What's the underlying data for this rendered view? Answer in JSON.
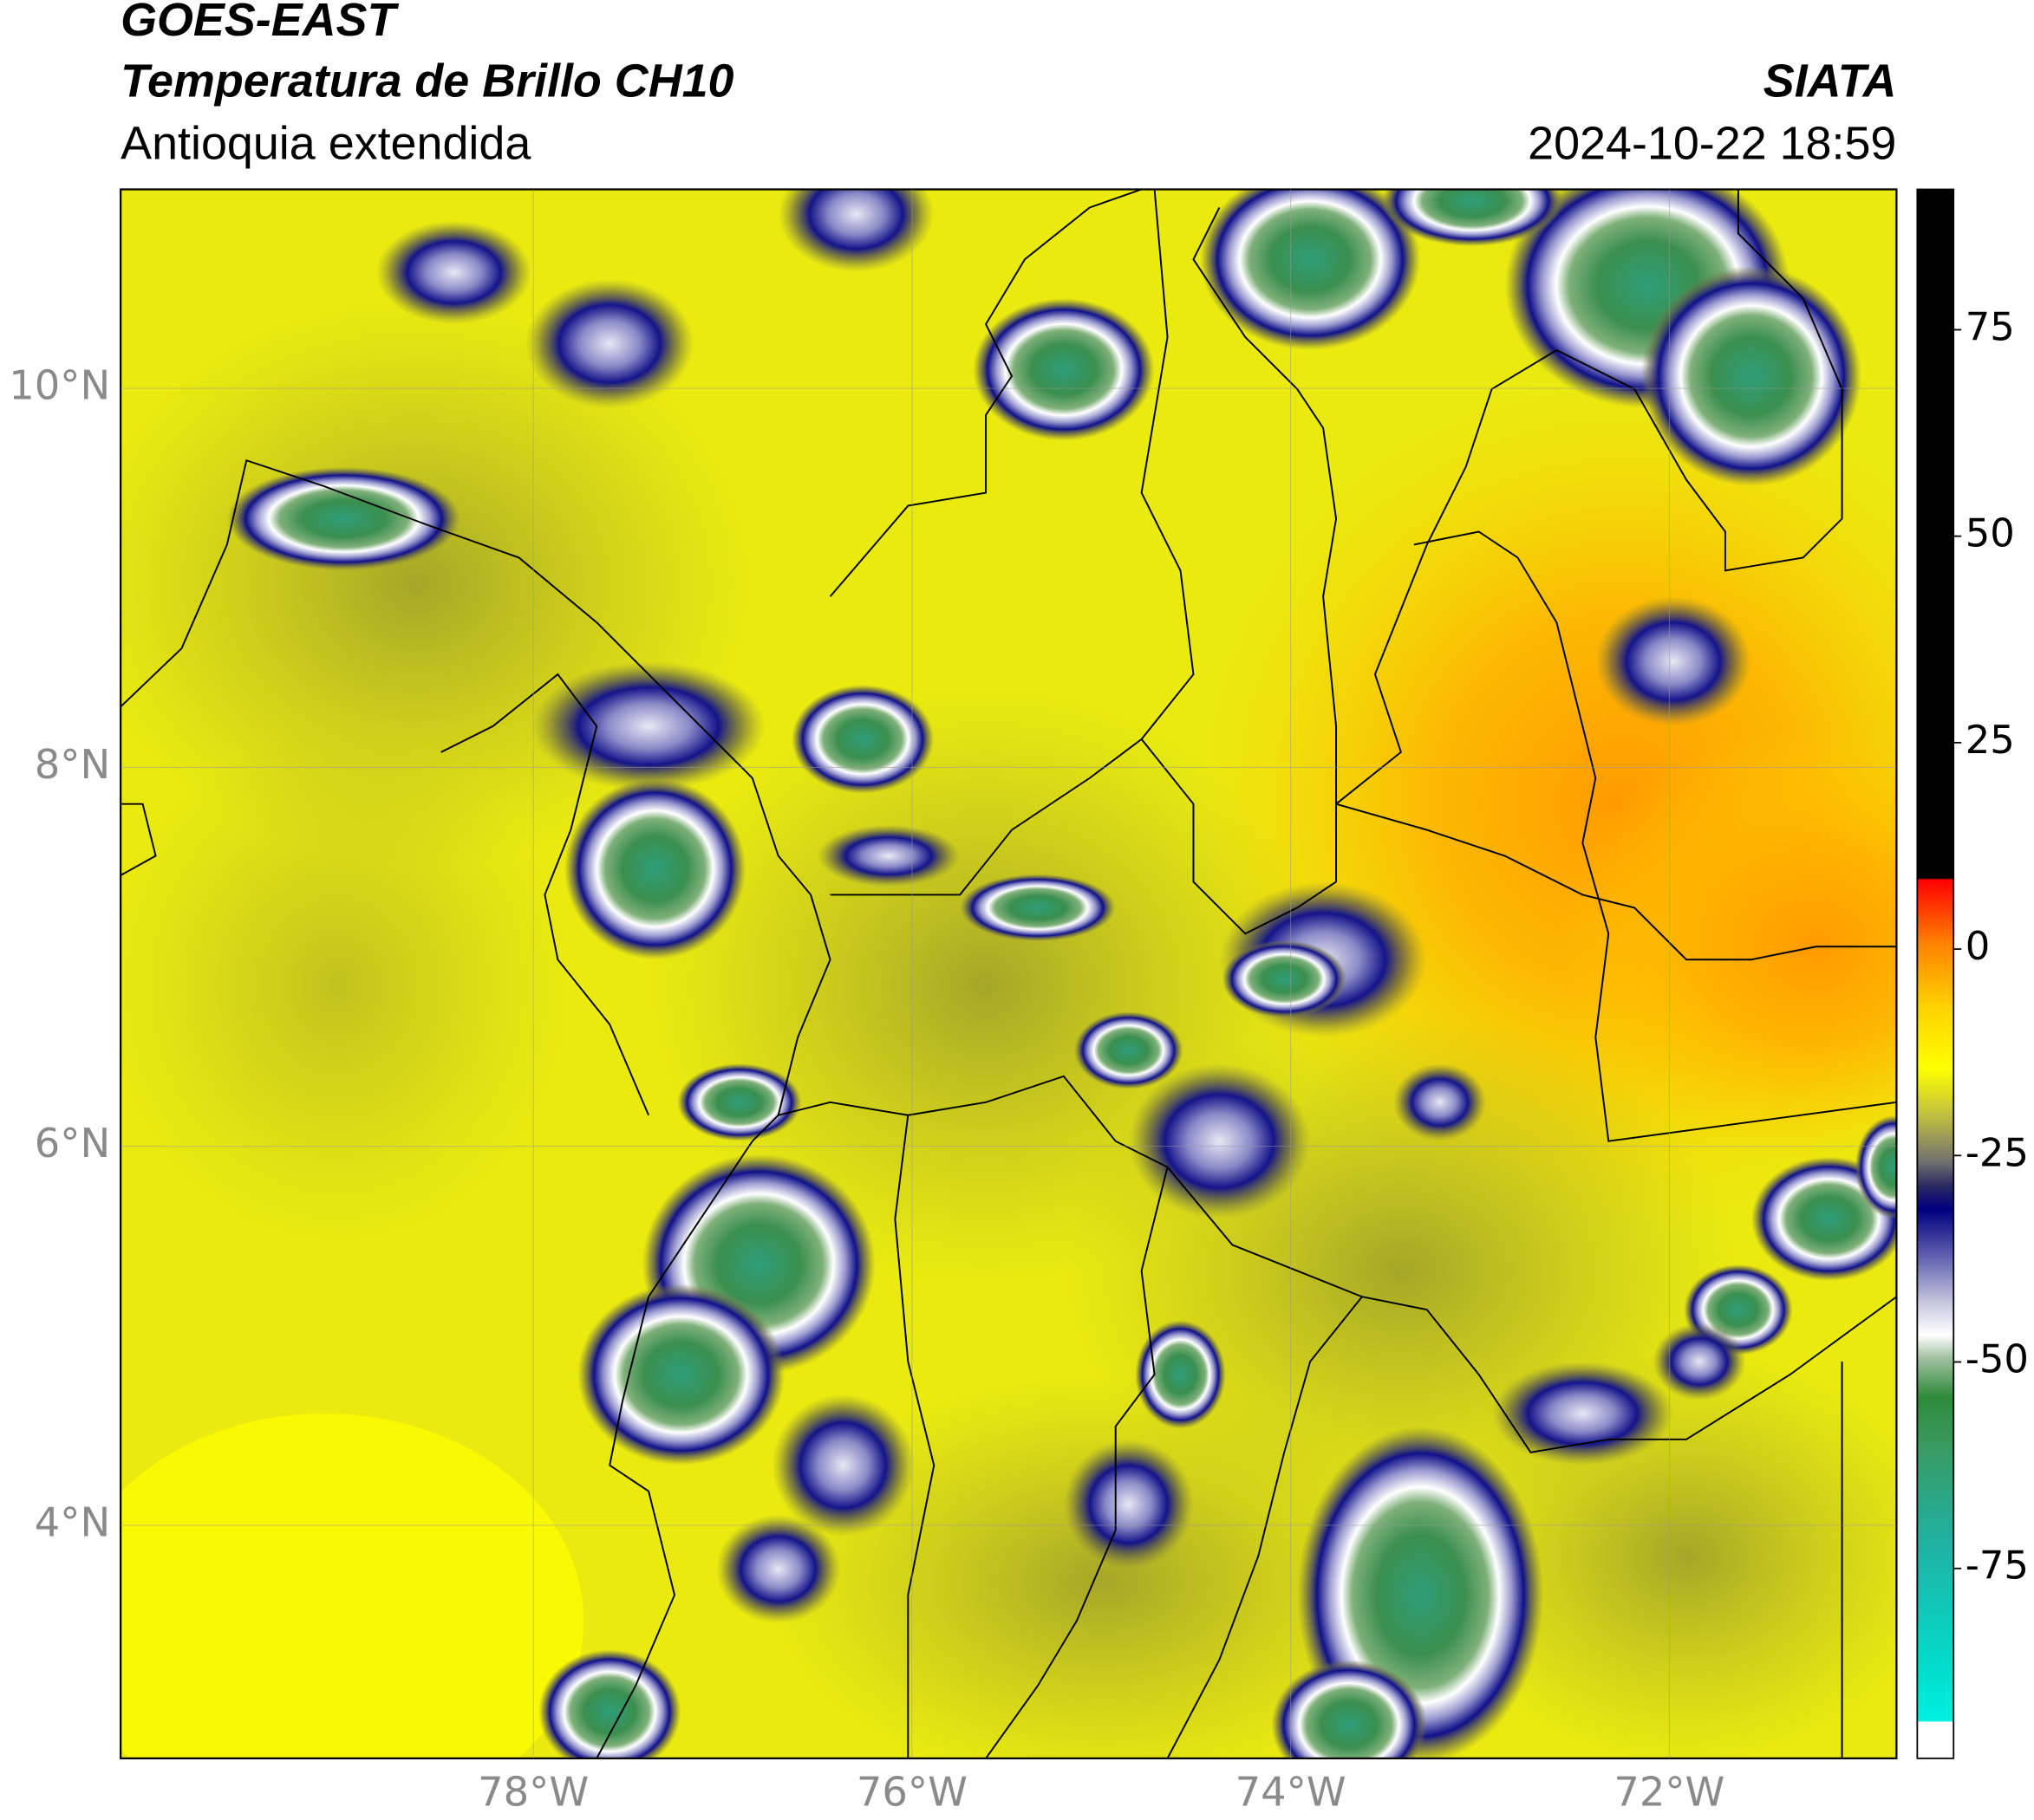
{
  "header": {
    "satellite": "GOES-EAST",
    "product": "Temperatura de Brillo CH10",
    "region": "Antioquia extendida",
    "agency": "SIATA",
    "datetime": "2024-10-22 18:59"
  },
  "map": {
    "lonlim": [
      -80.18,
      -70.8
    ],
    "latlim": [
      2.77,
      11.05
    ],
    "lon_ticks": [
      {
        "value": -78,
        "label": "78°W"
      },
      {
        "value": -76,
        "label": "76°W"
      },
      {
        "value": -74,
        "label": "74°W"
      },
      {
        "value": -72,
        "label": "72°W"
      }
    ],
    "lat_ticks": [
      {
        "value": 10,
        "label": "10°N"
      },
      {
        "value": 8,
        "label": "8°N"
      },
      {
        "value": 6,
        "label": "6°N"
      },
      {
        "value": 4,
        "label": "4°N"
      }
    ]
  },
  "colorbar": {
    "range": [
      -98,
      92
    ],
    "ticks": [
      75,
      50,
      25,
      0,
      -25,
      -50,
      -75
    ]
  }
}
